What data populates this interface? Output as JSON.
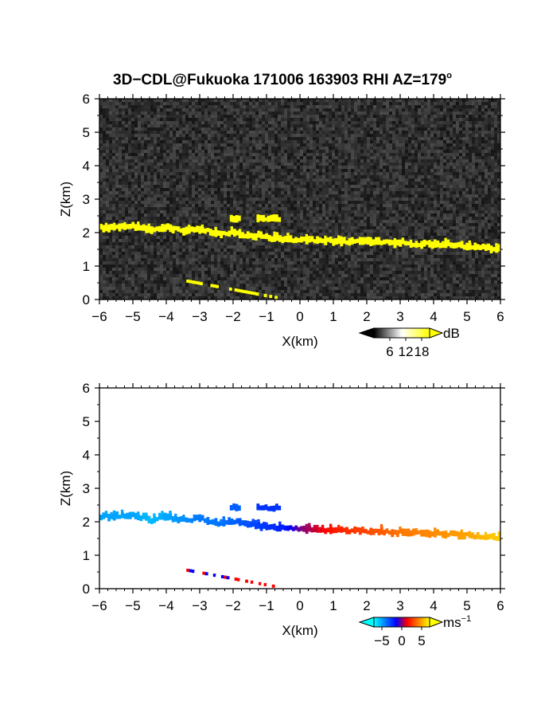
{
  "title": "3D−CDL@Fukuoka 171006 163903 RHI AZ=179",
  "title_superscript": "o",
  "chart_data": [
    {
      "type": "heatmap",
      "name": "backscatter",
      "xlabel": "X(km)",
      "ylabel": "Z(km)",
      "xlim": [
        -6,
        6
      ],
      "ylim": [
        0,
        6
      ],
      "xticks": [
        "−6",
        "−5",
        "−4",
        "−3",
        "−2",
        "−1",
        "0",
        "1",
        "2",
        "3",
        "4",
        "5",
        "6"
      ],
      "yticks": [
        "0",
        "1",
        "2",
        "3",
        "4",
        "5",
        "6"
      ],
      "background": "noise",
      "colorbar": {
        "unit": "dB",
        "ticks": [
          "6",
          "12",
          "18"
        ],
        "range": [
          0,
          21
        ],
        "colors": [
          "#000000",
          "#ffffff",
          "#ffff00"
        ]
      },
      "layer": {
        "x": [
          -6,
          -5,
          -4.5,
          -4,
          -3.5,
          -3,
          -2.5,
          -2,
          -1.5,
          -1,
          -0.5,
          0,
          1,
          2,
          3,
          4,
          5,
          6
        ],
        "z": [
          2.15,
          2.2,
          2.05,
          2.15,
          2.05,
          2.1,
          1.95,
          2.0,
          1.9,
          1.85,
          1.8,
          1.78,
          1.75,
          1.72,
          1.68,
          1.65,
          1.6,
          1.5
        ],
        "value_db": 20
      },
      "upper_cells": [
        {
          "x": [
            -2.1,
            -1.8
          ],
          "z": [
            2.3,
            2.55
          ]
        },
        {
          "x": [
            -1.3,
            -0.6
          ],
          "z": [
            2.3,
            2.55
          ]
        }
      ],
      "low_layer": {
        "x": [
          -3.4,
          -0.7
        ],
        "z": [
          0.55,
          0.05
        ],
        "value_db": 20
      }
    },
    {
      "type": "heatmap",
      "name": "doppler velocity",
      "xlabel": "X(km)",
      "ylabel": "Z(km)",
      "xlim": [
        -6,
        6
      ],
      "ylim": [
        0,
        6
      ],
      "xticks": [
        "−6",
        "−5",
        "−4",
        "−3",
        "−2",
        "−1",
        "0",
        "1",
        "2",
        "3",
        "4",
        "5",
        "6"
      ],
      "yticks": [
        "0",
        "1",
        "2",
        "3",
        "4",
        "5",
        "6"
      ],
      "colorbar": {
        "unit": "ms",
        "unit_superscript": "−1",
        "ticks": [
          "−5",
          "0",
          "5"
        ],
        "range": [
          -7,
          7
        ],
        "colors": [
          "#00ffff",
          "#0080ff",
          "#0000ff",
          "#ff0000",
          "#ff8000",
          "#ffff00"
        ]
      },
      "layer": {
        "x": [
          -6,
          -5,
          -4.5,
          -4,
          -3.5,
          -3,
          -2.5,
          -2,
          -1.5,
          -1,
          -0.5,
          0,
          1,
          2,
          3,
          4,
          5,
          6
        ],
        "z": [
          2.15,
          2.2,
          2.05,
          2.15,
          2.05,
          2.1,
          1.95,
          2.0,
          1.9,
          1.85,
          1.8,
          1.78,
          1.75,
          1.72,
          1.68,
          1.65,
          1.6,
          1.5
        ],
        "velocity_ms": [
          -5,
          -5,
          -5.5,
          -5,
          -4.5,
          -4,
          -4,
          -3.5,
          -3,
          -2.5,
          -2,
          0,
          2,
          3,
          4,
          4.5,
          5,
          6
        ]
      },
      "upper_cells": [
        {
          "x": [
            -2.1,
            -1.8
          ],
          "z": [
            2.3,
            2.55
          ],
          "velocity_ms": -3.5
        },
        {
          "x": [
            -1.3,
            -0.6
          ],
          "z": [
            2.3,
            2.55
          ],
          "velocity_ms": -2.5
        }
      ],
      "low_layer": {
        "x": [
          -3.4,
          -0.7
        ],
        "z": [
          0.55,
          0.05
        ],
        "velocity_ms": [
          -1,
          1
        ]
      }
    }
  ]
}
